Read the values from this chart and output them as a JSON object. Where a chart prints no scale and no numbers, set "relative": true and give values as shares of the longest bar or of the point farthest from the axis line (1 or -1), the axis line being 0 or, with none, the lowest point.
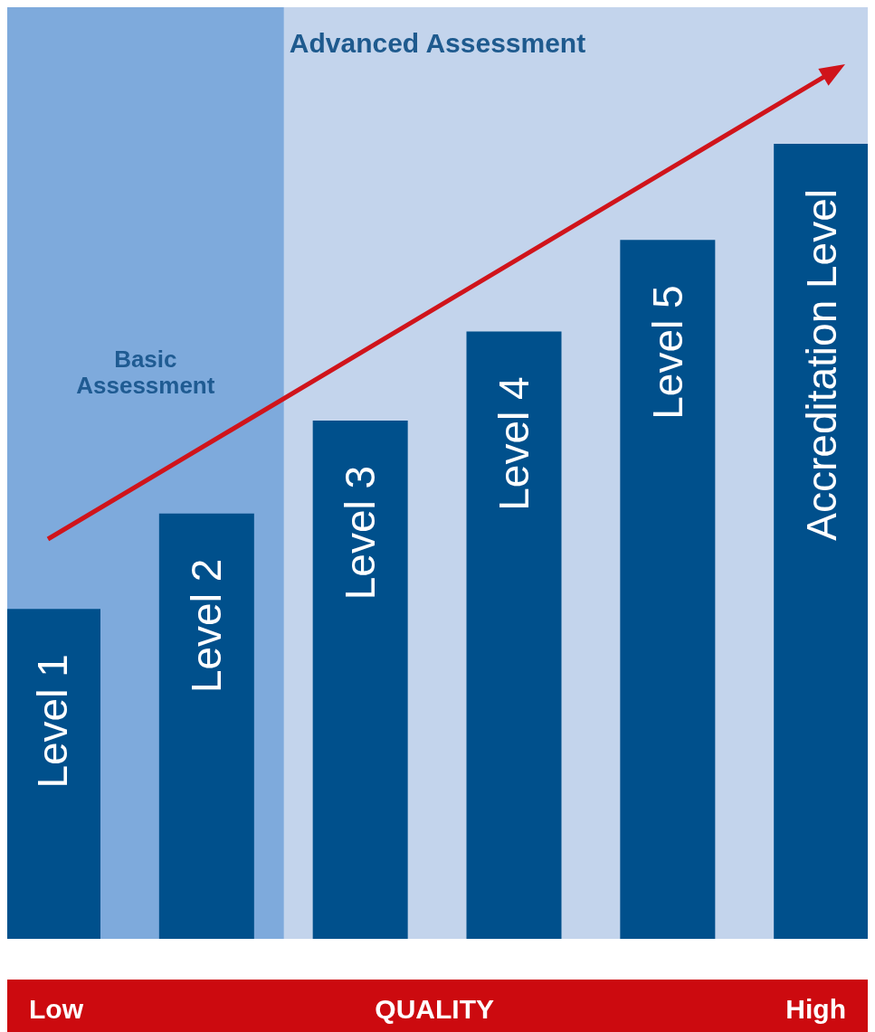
{
  "chart_data": {
    "type": "bar",
    "relative": true,
    "categories": [
      "Level 1",
      "Level 2",
      "Level 3",
      "Level 4",
      "Level 5",
      "Accreditation Level"
    ],
    "values": [
      0.415,
      0.535,
      0.652,
      0.764,
      0.879,
      1
    ],
    "color": "#00508c",
    "xlabel": "QUALITY",
    "annotations": [
      "Low",
      "High"
    ],
    "bands": [
      {
        "axis": "x",
        "from": "Level 1",
        "to": "Accreditation Level",
        "label": "Advanced Assessment",
        "color": "#c3d4ec"
      },
      {
        "axis": "x",
        "from": "Level 1",
        "to": "Level 2",
        "label": "Basic Assessment",
        "color": "#7eaadc"
      }
    ]
  }
}
